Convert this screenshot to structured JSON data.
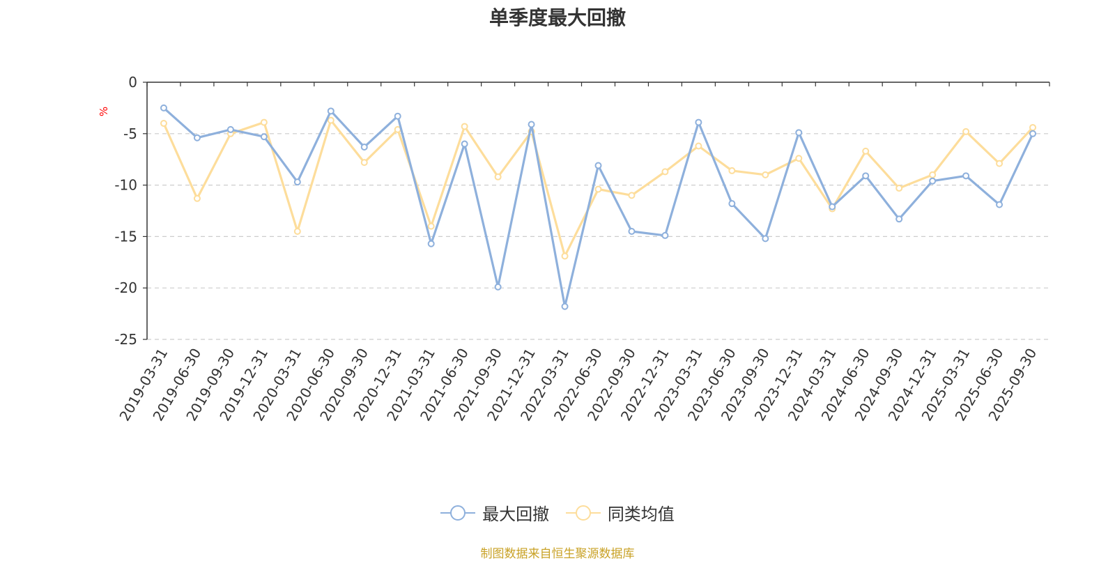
{
  "chart_data": {
    "type": "line",
    "title": "单季度最大回撤",
    "ylabel": "%",
    "ylim": [
      -25,
      0
    ],
    "yticks": [
      0,
      -5,
      -10,
      -15,
      -20,
      -25
    ],
    "grid": true,
    "legend_position": "bottom",
    "categories": [
      "2019-03-31",
      "2019-06-30",
      "2019-09-30",
      "2019-12-31",
      "2020-03-31",
      "2020-06-30",
      "2020-09-30",
      "2020-12-31",
      "2021-03-31",
      "2021-06-30",
      "2021-09-30",
      "2021-12-31",
      "2022-03-31",
      "2022-06-30",
      "2022-09-30",
      "2022-12-31",
      "2023-03-31",
      "2023-06-30",
      "2023-09-30",
      "2023-12-31",
      "2024-03-31",
      "2024-06-30",
      "2024-09-30",
      "2024-12-31",
      "2025-03-31",
      "2025-06-30",
      "2025-09-30"
    ],
    "series": [
      {
        "name": "最大回撤",
        "color": "#8eb0dc",
        "values": [
          -2.5,
          -5.4,
          -4.6,
          -5.3,
          -9.7,
          -2.8,
          -6.3,
          -3.3,
          -15.7,
          -6.0,
          -19.9,
          -4.1,
          -21.8,
          -8.1,
          -14.5,
          -14.9,
          -3.9,
          -11.8,
          -15.2,
          -4.9,
          -12.1,
          -9.1,
          -13.3,
          -9.6,
          -9.1,
          -11.9,
          -5.0
        ]
      },
      {
        "name": "同类均值",
        "color": "#fddd9b",
        "values": [
          -4.0,
          -11.3,
          -5.0,
          -3.9,
          -14.5,
          -3.7,
          -7.8,
          -4.6,
          -14.0,
          -4.3,
          -9.2,
          -4.8,
          -16.9,
          -10.4,
          -11.0,
          -8.7,
          -6.2,
          -8.6,
          -9.0,
          -7.4,
          -12.3,
          -6.7,
          -10.3,
          -9.0,
          -4.8,
          -7.9,
          -4.4
        ]
      }
    ]
  },
  "footer": {
    "text": "制图数据来自恒生聚源数据库",
    "color": "#c9a227"
  },
  "colors": {
    "axis": "#333333",
    "grid": "#cccccc",
    "ylabel": "#ff0000"
  }
}
